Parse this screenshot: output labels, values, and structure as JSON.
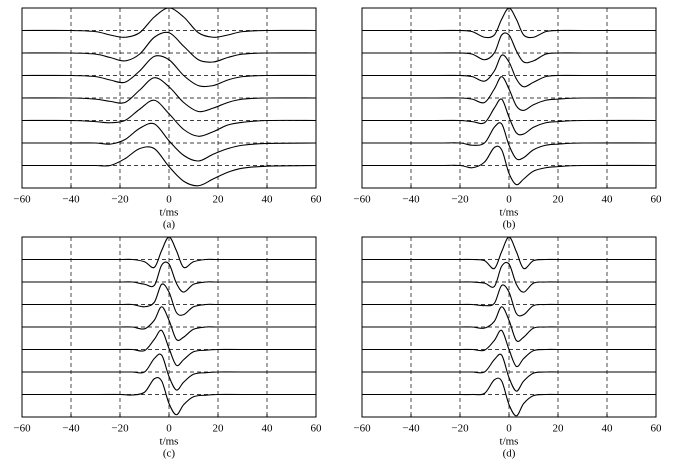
{
  "chart_data": [
    {
      "type": "line",
      "caption": "(a)",
      "xlabel": "t/ms",
      "color": "#000000",
      "grid": true,
      "xlim": [
        -60,
        60
      ],
      "xticks": [
        {
          "value": -60,
          "label": "−60"
        },
        {
          "value": -40,
          "label": "−40"
        },
        {
          "value": -20,
          "label": "−20"
        },
        0,
        20,
        40,
        60
      ],
      "x": [
        -60,
        -40,
        -30,
        -24,
        -18,
        -12,
        -6,
        0,
        6,
        12,
        18,
        24,
        30,
        40,
        60
      ],
      "series": [
        {
          "values": [
            0,
            0,
            -0.05,
            -0.2,
            -0.3,
            -0.1,
            0.6,
            1,
            0.6,
            -0.1,
            -0.3,
            -0.2,
            -0.05,
            0,
            0
          ]
        },
        {
          "values": [
            0,
            0,
            -0.05,
            -0.2,
            -0.35,
            -0.05,
            0.7,
            0.9,
            0.3,
            -0.3,
            -0.4,
            -0.2,
            -0.05,
            0,
            0
          ]
        },
        {
          "values": [
            0,
            0,
            -0.05,
            -0.2,
            -0.3,
            0.2,
            0.85,
            0.7,
            0,
            -0.45,
            -0.45,
            -0.2,
            -0.05,
            0,
            0
          ]
        },
        {
          "values": [
            0,
            0,
            -0.05,
            -0.15,
            -0.2,
            0.35,
            0.9,
            0.5,
            -0.2,
            -0.6,
            -0.45,
            -0.2,
            -0.05,
            0,
            0
          ]
        },
        {
          "values": [
            0,
            0,
            -0.05,
            -0.1,
            0,
            0.5,
            0.9,
            0.3,
            -0.4,
            -0.7,
            -0.5,
            -0.2,
            -0.08,
            0,
            0
          ]
        },
        {
          "values": [
            0,
            0,
            0,
            -0.05,
            0.15,
            0.65,
            0.85,
            0.1,
            -0.55,
            -0.8,
            -0.5,
            -0.25,
            -0.1,
            -0.02,
            0
          ]
        },
        {
          "values": [
            0,
            0,
            0,
            0,
            0.3,
            0.75,
            0.75,
            -0.05,
            -0.7,
            -0.9,
            -0.6,
            -0.3,
            -0.12,
            -0.03,
            0
          ]
        }
      ]
    },
    {
      "type": "line",
      "caption": "(b)",
      "xlabel": "t/ms",
      "color": "#000000",
      "grid": true,
      "xlim": [
        -60,
        60
      ],
      "xticks": [
        {
          "value": -60,
          "label": "−60"
        },
        {
          "value": -40,
          "label": "−40"
        },
        {
          "value": -20,
          "label": "−20"
        },
        0,
        20,
        40,
        60
      ],
      "x": [
        -60,
        -30,
        -20,
        -15,
        -10,
        -6,
        -3,
        0,
        3,
        6,
        10,
        15,
        20,
        30,
        60
      ],
      "series": [
        {
          "values": [
            0,
            0,
            0,
            -0.05,
            -0.3,
            -0.2,
            0.5,
            1,
            0.5,
            -0.2,
            -0.3,
            -0.05,
            0,
            0,
            0
          ]
        },
        {
          "values": [
            0,
            0,
            0,
            -0.05,
            -0.3,
            0,
            0.8,
            0.8,
            0.1,
            -0.4,
            -0.35,
            -0.05,
            0,
            0,
            0
          ]
        },
        {
          "values": [
            0,
            0,
            0,
            -0.05,
            -0.25,
            0.2,
            0.9,
            0.6,
            -0.15,
            -0.5,
            -0.3,
            -0.05,
            0,
            0,
            0
          ]
        },
        {
          "values": [
            0,
            0,
            0,
            -0.05,
            -0.2,
            0.4,
            0.95,
            0.4,
            -0.35,
            -0.55,
            -0.3,
            -0.1,
            -0.05,
            0,
            0
          ]
        },
        {
          "values": [
            0,
            0,
            0,
            -0.05,
            -0.1,
            0.55,
            0.95,
            0.15,
            -0.55,
            -0.6,
            -0.3,
            -0.1,
            -0.05,
            0,
            0
          ]
        },
        {
          "values": [
            0,
            0,
            0,
            -0.1,
            0,
            0.7,
            0.85,
            -0.1,
            -0.7,
            -0.65,
            -0.3,
            -0.1,
            -0.05,
            0,
            0
          ]
        },
        {
          "values": [
            0,
            0,
            0,
            -0.1,
            0.15,
            0.8,
            0.7,
            -0.35,
            -0.85,
            -0.6,
            -0.25,
            -0.1,
            -0.05,
            0,
            0
          ]
        }
      ]
    },
    {
      "type": "line",
      "caption": "(c)",
      "xlabel": "t/ms",
      "color": "#000000",
      "grid": true,
      "xlim": [
        -60,
        60
      ],
      "xticks": [
        {
          "value": -60,
          "label": "−60"
        },
        {
          "value": -40,
          "label": "−40"
        },
        {
          "value": -20,
          "label": "−20"
        },
        0,
        20,
        40,
        60
      ],
      "x": [
        -60,
        -30,
        -20,
        -15,
        -10,
        -6,
        -3,
        0,
        3,
        6,
        10,
        15,
        20,
        30,
        60
      ],
      "series": [
        {
          "values": [
            0,
            0,
            0,
            0,
            -0.1,
            -0.35,
            0.4,
            1,
            0.4,
            -0.35,
            -0.1,
            0,
            0,
            0,
            0
          ]
        },
        {
          "values": [
            0,
            0,
            0,
            0,
            -0.1,
            -0.15,
            0.75,
            0.8,
            -0.05,
            -0.45,
            -0.1,
            0,
            0,
            0,
            0
          ]
        },
        {
          "values": [
            0,
            0,
            0,
            0,
            -0.1,
            0.1,
            0.9,
            0.55,
            -0.35,
            -0.45,
            -0.1,
            0,
            0,
            0,
            0
          ]
        },
        {
          "values": [
            0,
            0,
            0,
            0,
            -0.08,
            0.3,
            0.9,
            0.3,
            -0.55,
            -0.45,
            -0.1,
            0,
            0,
            0,
            0
          ]
        },
        {
          "values": [
            0,
            0,
            0,
            0,
            -0.05,
            0.45,
            0.85,
            0.05,
            -0.7,
            -0.45,
            -0.1,
            -0.03,
            0,
            0,
            0
          ]
        },
        {
          "values": [
            0,
            0,
            0,
            0,
            0,
            0.6,
            0.75,
            -0.2,
            -0.8,
            -0.45,
            -0.1,
            -0.03,
            0,
            0,
            0
          ]
        },
        {
          "values": [
            0,
            0,
            0,
            -0.02,
            0.1,
            0.7,
            0.6,
            -0.4,
            -0.9,
            -0.45,
            -0.1,
            -0.03,
            0,
            0,
            0
          ]
        }
      ]
    },
    {
      "type": "line",
      "caption": "(d)",
      "xlabel": "t/ms",
      "color": "#000000",
      "grid": true,
      "xlim": [
        -60,
        60
      ],
      "xticks": [
        {
          "value": -60,
          "label": "−60"
        },
        {
          "value": -40,
          "label": "−40"
        },
        {
          "value": -20,
          "label": "−20"
        },
        0,
        20,
        40,
        60
      ],
      "x": [
        -60,
        -30,
        -20,
        -15,
        -10,
        -6,
        -3,
        0,
        3,
        6,
        10,
        15,
        20,
        30,
        60
      ],
      "series": [
        {
          "values": [
            0,
            0,
            0,
            0,
            -0.05,
            -0.4,
            0.35,
            1,
            0.35,
            -0.4,
            -0.05,
            0,
            0,
            0,
            0
          ]
        },
        {
          "values": [
            0,
            0,
            0,
            0,
            -0.05,
            -0.2,
            0.7,
            0.8,
            -0.1,
            -0.45,
            -0.05,
            0,
            0,
            0,
            0
          ]
        },
        {
          "values": [
            0,
            0,
            0,
            0,
            -0.05,
            0.05,
            0.85,
            0.55,
            -0.4,
            -0.45,
            -0.05,
            0,
            0,
            0,
            0
          ]
        },
        {
          "values": [
            0,
            0,
            0,
            0,
            -0.05,
            0.25,
            0.9,
            0.3,
            -0.6,
            -0.45,
            -0.05,
            0,
            0,
            0,
            0
          ]
        },
        {
          "values": [
            0,
            0,
            0,
            0,
            -0.03,
            0.4,
            0.85,
            0,
            -0.75,
            -0.4,
            -0.05,
            0,
            0,
            0,
            0
          ]
        },
        {
          "values": [
            0,
            0,
            0,
            0,
            0,
            0.55,
            0.75,
            -0.25,
            -0.85,
            -0.4,
            -0.05,
            0,
            0,
            0,
            0
          ]
        },
        {
          "values": [
            0,
            0,
            0,
            0,
            0.05,
            0.65,
            0.6,
            -0.45,
            -0.95,
            -0.4,
            -0.05,
            0,
            0,
            0,
            0
          ]
        }
      ]
    }
  ]
}
